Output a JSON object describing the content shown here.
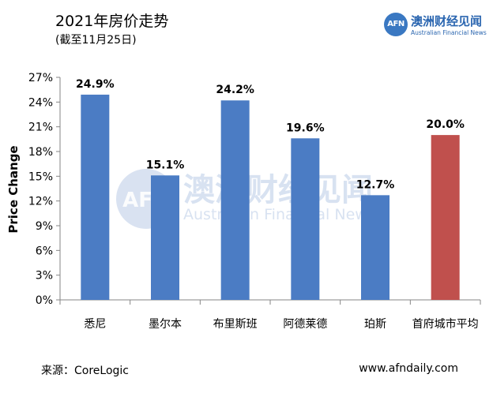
{
  "header": {
    "title": "2021年房价走势",
    "subtitle": "(截至11月25日)"
  },
  "logo": {
    "mark": "AFN",
    "name_cn": "澳洲财经见闻",
    "name_en": "Australian Financial News"
  },
  "watermark": {
    "mark": "AFN",
    "name_cn": "澳洲财经见闻",
    "name_en": "Australian Financial News"
  },
  "footer": {
    "source": "来源：CoreLogic",
    "website": "www.afndaily.com"
  },
  "colors": {
    "bar_default": "#4b7cc4",
    "bar_highlight": "#c0504d",
    "axis": "#868686",
    "watermark": "#b9cbe6"
  },
  "chart_data": {
    "type": "bar",
    "title": "2021年房价走势",
    "subtitle": "(截至11月25日)",
    "xlabel": "",
    "ylabel": "Price Change",
    "categories": [
      "悉尼",
      "墨尔本",
      "布里斯班",
      "阿德莱德",
      "珀斯",
      "首府城市平均"
    ],
    "values": [
      24.9,
      15.1,
      24.2,
      19.6,
      12.7,
      20.0
    ],
    "value_labels": [
      "24.9%",
      "15.1%",
      "24.2%",
      "19.6%",
      "12.7%",
      "20.0%"
    ],
    "highlight": [
      false,
      false,
      false,
      false,
      false,
      true
    ],
    "ylim": [
      0,
      27
    ],
    "yticks": [
      0,
      3,
      6,
      9,
      12,
      15,
      18,
      21,
      24,
      27
    ],
    "ytick_labels": [
      "0%",
      "3%",
      "6%",
      "9%",
      "12%",
      "15%",
      "18%",
      "21%",
      "24%",
      "27%"
    ],
    "grid": false,
    "legend": "none"
  }
}
